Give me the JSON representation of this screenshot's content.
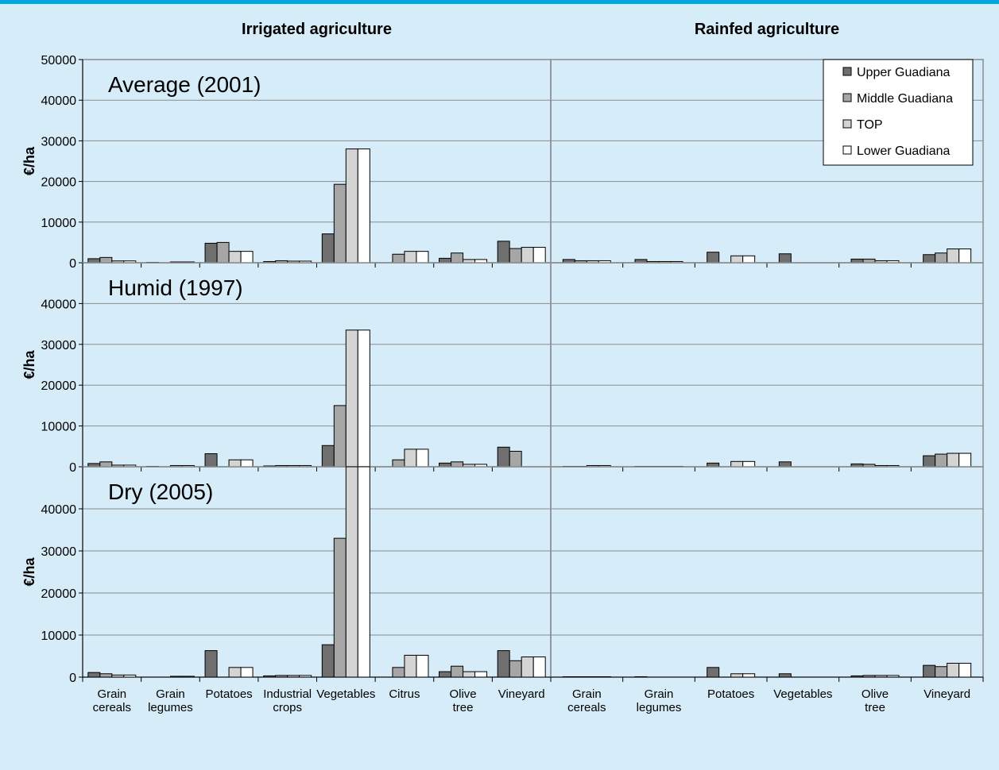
{
  "colors": {
    "background": "#d6ecf8",
    "topbar": "#00a7e1",
    "series": [
      "#6f6f6f",
      "#a6a6a6",
      "#d4d4d4",
      "#ffffff"
    ]
  },
  "headings": {
    "irrigated": "Irrigated agriculture",
    "rainfed": "Rainfed agriculture"
  },
  "legend": {
    "placement": "top-right",
    "items": [
      "Upper Guadiana",
      "Middle Guadiana",
      "TOP",
      "Lower Guadiana"
    ]
  },
  "chart_data": [
    {
      "type": "bar",
      "panel": "irrigated",
      "title": "Average (2001)",
      "ylabel": "€/ha",
      "ylim": [
        0,
        50000
      ],
      "yticks": [
        0,
        10000,
        20000,
        30000,
        40000,
        50000
      ],
      "categories": [
        "Grain cereals",
        "Grain legumes",
        "Potatoes",
        "Industrial crops",
        "Vegetables",
        "Citrus",
        "Olive tree",
        "Vineyard"
      ],
      "series": [
        {
          "name": "Upper Guadiana",
          "values": [
            1000,
            100,
            4800,
            300,
            7100,
            0,
            1100,
            5300
          ]
        },
        {
          "name": "Middle Guadiana",
          "values": [
            1300,
            0,
            5000,
            500,
            19300,
            2100,
            2400,
            3500
          ]
        },
        {
          "name": "TOP",
          "values": [
            450,
            200,
            2800,
            400,
            28000,
            2800,
            800,
            3800
          ]
        },
        {
          "name": "Lower Guadiana",
          "values": [
            450,
            200,
            2800,
            400,
            28000,
            2800,
            800,
            3800
          ]
        }
      ]
    },
    {
      "type": "bar",
      "panel": "rainfed",
      "title": "",
      "ylim": [
        0,
        50000
      ],
      "categories": [
        "Grain cereals",
        "Grain legumes",
        "Potatoes",
        "Vegetables",
        "Olive tree",
        "Vineyard"
      ],
      "series": [
        {
          "name": "Upper Guadiana",
          "values": [
            800,
            800,
            2600,
            2200,
            900,
            2000
          ]
        },
        {
          "name": "Middle Guadiana",
          "values": [
            500,
            300,
            0,
            0,
            900,
            2400
          ]
        },
        {
          "name": "TOP",
          "values": [
            500,
            300,
            1700,
            0,
            500,
            3400
          ]
        },
        {
          "name": "Lower Guadiana",
          "values": [
            500,
            300,
            1700,
            0,
            500,
            3400
          ]
        }
      ]
    },
    {
      "type": "bar",
      "panel": "irrigated",
      "title": "Humid (1997)",
      "ylabel": "€/ha",
      "ylim": [
        0,
        50000
      ],
      "yticks": [
        0,
        10000,
        20000,
        30000,
        40000
      ],
      "categories": [
        "Grain cereals",
        "Grain legumes",
        "Potatoes",
        "Industrial crops",
        "Vegetables",
        "Citrus",
        "Olive tree",
        "Vineyard"
      ],
      "series": [
        {
          "name": "Upper Guadiana",
          "values": [
            800,
            100,
            3200,
            200,
            5200,
            0,
            900,
            4800
          ]
        },
        {
          "name": "Middle Guadiana",
          "values": [
            1200,
            0,
            0,
            300,
            15000,
            1700,
            1200,
            3800
          ]
        },
        {
          "name": "TOP",
          "values": [
            400,
            300,
            1700,
            300,
            33500,
            4300,
            600,
            0
          ]
        },
        {
          "name": "Lower Guadiana",
          "values": [
            400,
            300,
            1700,
            300,
            33500,
            4300,
            600,
            0
          ]
        }
      ]
    },
    {
      "type": "bar",
      "panel": "rainfed",
      "title": "",
      "ylim": [
        0,
        50000
      ],
      "categories": [
        "Grain cereals",
        "Grain legumes",
        "Potatoes",
        "Vegetables",
        "Olive tree",
        "Vineyard"
      ],
      "series": [
        {
          "name": "Upper Guadiana",
          "values": [
            100,
            100,
            900,
            1200,
            700,
            2700
          ]
        },
        {
          "name": "Middle Guadiana",
          "values": [
            100,
            100,
            0,
            0,
            600,
            3100
          ]
        },
        {
          "name": "TOP",
          "values": [
            300,
            100,
            1300,
            0,
            300,
            3300
          ]
        },
        {
          "name": "Lower Guadiana",
          "values": [
            300,
            100,
            1300,
            0,
            300,
            3300
          ]
        }
      ]
    },
    {
      "type": "bar",
      "panel": "irrigated",
      "title": "Dry (2005)",
      "ylabel": "€/ha",
      "ylim": [
        0,
        50000
      ],
      "yticks": [
        0,
        10000,
        20000,
        30000,
        40000
      ],
      "categories": [
        "Grain cereals",
        "Grain legumes",
        "Potatoes",
        "Industrial crops",
        "Vegetables",
        "Citrus",
        "Olive tree",
        "Vineyard"
      ],
      "series": [
        {
          "name": "Upper Guadiana",
          "values": [
            1100,
            0,
            6300,
            300,
            7700,
            0,
            1300,
            6300
          ]
        },
        {
          "name": "Middle Guadiana",
          "values": [
            800,
            0,
            0,
            400,
            33000,
            2300,
            2600,
            3900
          ]
        },
        {
          "name": "TOP",
          "values": [
            500,
            200,
            2300,
            400,
            50000,
            5200,
            1300,
            4800
          ]
        },
        {
          "name": "Lower Guadiana",
          "values": [
            500,
            200,
            2300,
            400,
            50000,
            5200,
            1300,
            4800
          ]
        }
      ]
    },
    {
      "type": "bar",
      "panel": "rainfed",
      "title": "",
      "ylim": [
        0,
        50000
      ],
      "categories": [
        "Grain cereals",
        "Grain legumes",
        "Potatoes",
        "Vegetables",
        "Olive tree",
        "Vineyard"
      ],
      "series": [
        {
          "name": "Upper Guadiana",
          "values": [
            100,
            100,
            2300,
            800,
            300,
            2800
          ]
        },
        {
          "name": "Middle Guadiana",
          "values": [
            100,
            0,
            0,
            0,
            400,
            2500
          ]
        },
        {
          "name": "TOP",
          "values": [
            100,
            0,
            800,
            0,
            400,
            3300
          ]
        },
        {
          "name": "Lower Guadiana",
          "values": [
            100,
            0,
            800,
            0,
            400,
            3300
          ]
        }
      ]
    }
  ],
  "x_labels": {
    "irrigated": [
      [
        "Grain",
        "cereals"
      ],
      [
        "Grain",
        "legumes"
      ],
      [
        "Potatoes"
      ],
      [
        "Industrial",
        "crops"
      ],
      [
        "Vegetables"
      ],
      [
        "Citrus"
      ],
      [
        "Olive",
        "tree"
      ],
      [
        "Vineyard"
      ]
    ],
    "rainfed": [
      [
        "Grain",
        "cereals"
      ],
      [
        "Grain",
        "legumes"
      ],
      [
        "Potatoes"
      ],
      [
        "Vegetables"
      ],
      [
        "Olive",
        "tree"
      ],
      [
        "Vineyard"
      ]
    ]
  }
}
